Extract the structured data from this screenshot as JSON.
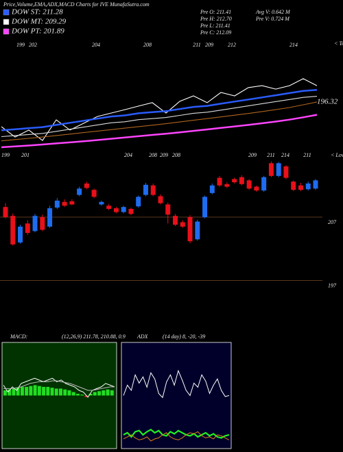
{
  "chart_data": {
    "type": "candlestick",
    "title": "Price,Volume,EMA,ADX,MACD Charts for IVE MunafaSutra.com",
    "legend": [
      {
        "label": "DOW ST: 211.28",
        "color": "#2a5cff"
      },
      {
        "label": "DOW MT: 209.29",
        "color": "#ffffff"
      },
      {
        "label": "DOW PT: 201.89",
        "color": "#ff44ff"
      }
    ],
    "info_left": [
      "Pre  O: 211.41",
      "Pre  H: 212.70",
      "Pre  L: 211.41",
      "Pre  C: 212.09"
    ],
    "info_right": [
      "Avg V: 0.642  M",
      "Pre  V: 0.724  M"
    ],
    "upper_panel": {
      "ylim": [
        175,
        225
      ],
      "tops_label": "< Tops",
      "top_labels": [
        "199",
        "202",
        "204",
        "208",
        "211",
        "209",
        "212",
        "214"
      ],
      "end_label": "196.32",
      "series": [
        {
          "name": "Price",
          "color": "#ffffff",
          "values": [
            184.7,
            179.8,
            183.1,
            178.2,
            187.9,
            183.1,
            186.3,
            189.5,
            191.1,
            192.7,
            194.4,
            196.0,
            191.1,
            196.6,
            199.2,
            196.0,
            200.8,
            199.2,
            203.1,
            204.0,
            202.4,
            204.0,
            207.3,
            204.0
          ]
        },
        {
          "name": "EMA ST",
          "color": "#2a5cff",
          "values": [
            183,
            183.5,
            184,
            184.5,
            185.5,
            186.5,
            187.5,
            188.5,
            189.5,
            190,
            191,
            191.5,
            192,
            193,
            194,
            194.5,
            195.5,
            196.5,
            197.5,
            198.5,
            199.5,
            200.5,
            201.5,
            202
          ]
        },
        {
          "name": "EMA MT",
          "color": "#dddddd",
          "values": [
            180,
            180.5,
            181,
            181.5,
            182.5,
            183.5,
            184.5,
            185.5,
            186.5,
            187,
            188,
            188.5,
            189,
            190,
            191,
            191.5,
            192.5,
            193.5,
            194.5,
            195.5,
            196.5,
            197.5,
            198.5,
            199
          ]
        },
        {
          "name": "EMA LT",
          "color": "#b0651e",
          "values": [
            178,
            178.6,
            179.2,
            179.8,
            180.5,
            181.2,
            181.9,
            182.6,
            183.3,
            184,
            184.7,
            185.4,
            186.1,
            186.9,
            187.7,
            188.5,
            189.3,
            190.1,
            190.9,
            191.8,
            192.7,
            193.7,
            195,
            196.32
          ]
        },
        {
          "name": "EMA PT",
          "color": "#ff44ff",
          "values": [
            175,
            175.4,
            175.8,
            176.3,
            176.8,
            177.3,
            177.8,
            178.4,
            179,
            179.6,
            180.2,
            180.8,
            181.4,
            182,
            182.7,
            183.4,
            184.1,
            184.8,
            185.5,
            186.3,
            187.1,
            188,
            189.1,
            190.3
          ]
        }
      ]
    },
    "lows_label": "< Lows",
    "low_labels": [
      "199",
      "201",
      "204",
      "208",
      "209",
      "208",
      "209",
      "211",
      "214",
      "211"
    ],
    "ylim": [
      194.8,
      216.4
    ],
    "yticks": [
      207,
      197
    ],
    "up_color": "#1e6cf0",
    "down_color": "#e8101a",
    "candles": [
      {
        "open": 208.6,
        "high": 209.2,
        "low": 206.8,
        "close": 207.0
      },
      {
        "open": 207.2,
        "high": 207.6,
        "low": 202.5,
        "close": 202.7
      },
      {
        "open": 203.0,
        "high": 205.8,
        "low": 202.8,
        "close": 205.5
      },
      {
        "open": 206.0,
        "high": 206.5,
        "low": 204.2,
        "close": 204.5
      },
      {
        "open": 204.8,
        "high": 207.5,
        "low": 204.6,
        "close": 207.2
      },
      {
        "open": 207.0,
        "high": 207.4,
        "low": 204.8,
        "close": 205.0
      },
      {
        "open": 205.5,
        "high": 208.8,
        "low": 205.3,
        "close": 208.4
      },
      {
        "open": 208.5,
        "high": 210.0,
        "low": 208.3,
        "close": 209.6
      },
      {
        "open": 209.4,
        "high": 209.8,
        "low": 208.6,
        "close": 208.8
      },
      {
        "open": 209.5,
        "high": 209.8,
        "low": 208.9,
        "close": 209.0
      },
      {
        "open": 210.5,
        "high": 211.8,
        "low": 210.3,
        "close": 211.5
      },
      {
        "open": 212.3,
        "high": 212.6,
        "low": 211.4,
        "close": 211.6
      },
      {
        "open": 211.3,
        "high": 211.5,
        "low": 210.0,
        "close": 210.2
      },
      {
        "open": 209.0,
        "high": 209.6,
        "low": 208.8,
        "close": 209.4
      },
      {
        "open": 208.8,
        "high": 209.1,
        "low": 208.1,
        "close": 208.3
      },
      {
        "open": 208.4,
        "high": 208.6,
        "low": 207.6,
        "close": 207.8
      },
      {
        "open": 207.8,
        "high": 208.8,
        "low": 207.6,
        "close": 208.6
      },
      {
        "open": 208.3,
        "high": 208.5,
        "low": 207.3,
        "close": 207.5
      },
      {
        "open": 208.7,
        "high": 210.4,
        "low": 208.5,
        "close": 210.2
      },
      {
        "open": 210.5,
        "high": 212.4,
        "low": 210.3,
        "close": 212.1
      },
      {
        "open": 212.0,
        "high": 212.3,
        "low": 210.3,
        "close": 210.5
      },
      {
        "open": 210.3,
        "high": 210.6,
        "low": 209.0,
        "close": 209.2
      },
      {
        "open": 209.0,
        "high": 209.3,
        "low": 206.0,
        "close": 207.4
      },
      {
        "open": 207.2,
        "high": 207.5,
        "low": 205.6,
        "close": 205.8
      },
      {
        "open": 206.2,
        "high": 206.5,
        "low": 205.3,
        "close": 205.5
      },
      {
        "open": 207.0,
        "high": 207.3,
        "low": 202.9,
        "close": 203.2
      },
      {
        "open": 203.5,
        "high": 206.6,
        "low": 203.3,
        "close": 206.3
      },
      {
        "open": 207.0,
        "high": 210.4,
        "low": 206.8,
        "close": 210.2
      },
      {
        "open": 210.8,
        "high": 212.3,
        "low": 210.6,
        "close": 212.0
      },
      {
        "open": 213.2,
        "high": 213.5,
        "low": 211.8,
        "close": 212.0
      },
      {
        "open": 212.2,
        "high": 212.5,
        "low": 211.6,
        "close": 211.8
      },
      {
        "open": 213.0,
        "high": 213.2,
        "low": 212.3,
        "close": 212.5
      },
      {
        "open": 213.3,
        "high": 213.6,
        "low": 212.0,
        "close": 212.2
      },
      {
        "open": 212.8,
        "high": 213.0,
        "low": 211.3,
        "close": 211.5
      },
      {
        "open": 211.8,
        "high": 212.0,
        "low": 211.0,
        "close": 211.2
      },
      {
        "open": 211.2,
        "high": 213.5,
        "low": 211.0,
        "close": 213.3
      },
      {
        "open": 215.5,
        "high": 215.8,
        "low": 213.3,
        "close": 213.5
      },
      {
        "open": 213.5,
        "high": 215.7,
        "low": 213.3,
        "close": 215.5
      },
      {
        "open": 215.0,
        "high": 215.2,
        "low": 213.0,
        "close": 213.2
      },
      {
        "open": 212.6,
        "high": 212.8,
        "low": 211.1,
        "close": 211.3
      },
      {
        "open": 212.0,
        "high": 212.4,
        "low": 211.1,
        "close": 211.3
      },
      {
        "open": 211.4,
        "high": 212.6,
        "low": 211.2,
        "close": 212.3
      },
      {
        "open": 211.5,
        "high": 213.0,
        "low": 211.3,
        "close": 212.8
      }
    ],
    "macd": {
      "label": "MACD:",
      "params": "(12,26,9) 211.78, 210.88, 0.9",
      "ylim": [
        -3,
        3
      ],
      "histogram_color": "#22dd22",
      "histogram": [
        0.3,
        0.35,
        0.4,
        0.45,
        0.5,
        0.5,
        0.55,
        0.6,
        0.55,
        0.5,
        0.5,
        0.45,
        0.4,
        0.4,
        0.35,
        0.3,
        0.2,
        0.1,
        0.05,
        -0.1,
        0.1,
        0.2,
        0.25,
        0.3,
        0.35,
        0.3
      ],
      "series": [
        {
          "name": "MACD",
          "color": "#ffffff",
          "values": [
            0.6,
            0.2,
            0.5,
            0.3,
            0.7,
            0.8,
            0.9,
            1.0,
            0.9,
            0.8,
            0.9,
            1.0,
            0.8,
            0.9,
            0.7,
            0.6,
            0.5,
            0.3,
            0.2,
            -0.1,
            0.3,
            0.4,
            0.5,
            0.7,
            0.6,
            0.5
          ]
        },
        {
          "name": "Signal",
          "color": "#bbbbbb",
          "values": [
            0.4,
            0.4,
            0.4,
            0.45,
            0.5,
            0.6,
            0.7,
            0.75,
            0.8,
            0.8,
            0.8,
            0.85,
            0.85,
            0.8,
            0.75,
            0.7,
            0.6,
            0.5,
            0.4,
            0.3,
            0.3,
            0.35,
            0.4,
            0.45,
            0.5,
            0.5
          ]
        }
      ]
    },
    "adx": {
      "label": "ADX",
      "params": "(14 day) 8, -20, -39",
      "ylim": [
        0,
        100
      ],
      "series": [
        {
          "name": "ADX",
          "color": "#ffffff",
          "values": [
            50,
            60,
            55,
            70,
            62,
            68,
            58,
            72,
            66,
            52,
            48,
            63,
            70,
            60,
            74,
            65,
            55,
            50,
            62,
            58,
            70,
            64,
            52,
            60,
            66,
            55,
            49,
            50
          ]
        },
        {
          "name": "+DI",
          "color": "#22ee22",
          "values": [
            12,
            14,
            10,
            15,
            16,
            12,
            15,
            17,
            14,
            16,
            12,
            11,
            15,
            13,
            16,
            14,
            12,
            11,
            13,
            10,
            12,
            14,
            11,
            13,
            10,
            9,
            11,
            12
          ]
        },
        {
          "name": "-DI",
          "color": "#e0801a",
          "values": [
            8,
            10,
            12,
            9,
            7,
            8,
            10,
            6,
            8,
            9,
            12,
            14,
            10,
            8,
            7,
            9,
            12,
            14,
            13,
            15,
            11,
            9,
            10,
            8,
            12,
            11,
            9,
            7
          ]
        }
      ]
    }
  }
}
